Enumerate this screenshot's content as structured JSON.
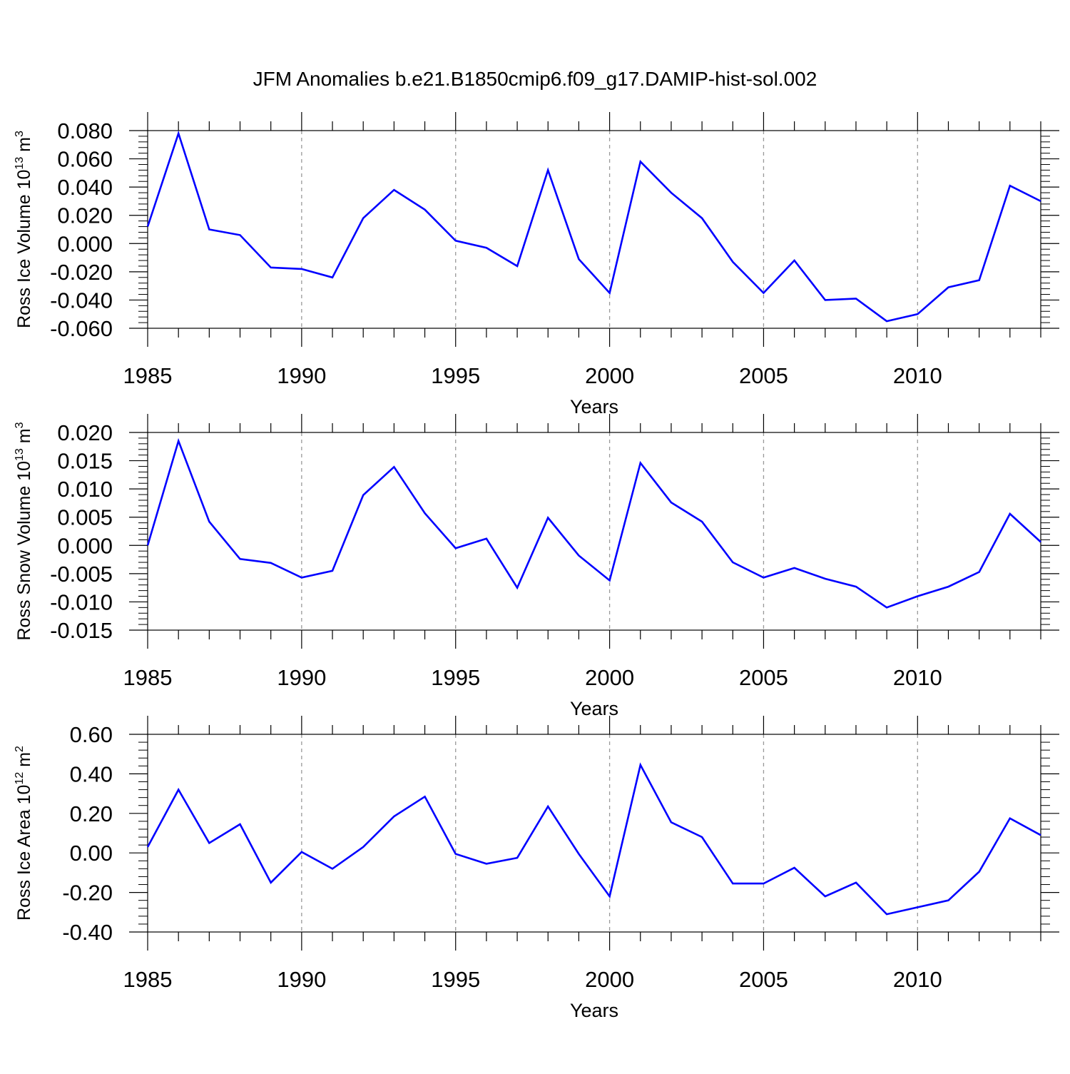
{
  "title": "JFM Anomalies b.e21.B1850cmip6.f09_g17.DAMIP-hist-sol.002",
  "styles": {
    "line_color": "#0000ff",
    "grid_color": "#999999",
    "axis_color": "#000000"
  },
  "chart_data": [
    {
      "type": "line",
      "ylabel": {
        "text": "Ross Ice Volume 10",
        "sup": "13",
        "unit": " m",
        "unit_sup": "3"
      },
      "xlabel": "Years",
      "xlim": [
        1985,
        2014
      ],
      "ylim": [
        -0.06,
        0.08
      ],
      "y_ticks": [
        -0.06,
        -0.04,
        -0.02,
        0.0,
        0.02,
        0.04,
        0.06,
        0.08
      ],
      "y_tick_labels": [
        "-0.060",
        "-0.040",
        "-0.020",
        "0.000",
        "0.020",
        "0.040",
        "0.060",
        "0.080"
      ],
      "x_ticks": [
        1985,
        1990,
        1995,
        2000,
        2005,
        2010
      ],
      "x_tick_labels": [
        "1985",
        "1990",
        "1995",
        "2000",
        "2005",
        "2010"
      ],
      "grid": "dashed vertical at major x ticks",
      "series": [
        {
          "x": [
            1985,
            1986,
            1987,
            1988,
            1989,
            1990,
            1991,
            1992,
            1993,
            1994,
            1995,
            1996,
            1997,
            1998,
            1999,
            2000,
            2001,
            2002,
            2003,
            2004,
            2005,
            2006,
            2007,
            2008,
            2009,
            2010,
            2011,
            2012,
            2013,
            2014
          ],
          "values": [
            0.012,
            0.078,
            0.01,
            0.006,
            -0.017,
            -0.018,
            -0.024,
            0.018,
            0.038,
            0.024,
            0.002,
            -0.003,
            -0.016,
            0.052,
            -0.011,
            -0.035,
            0.058,
            0.036,
            0.018,
            -0.013,
            -0.035,
            -0.012,
            -0.04,
            -0.039,
            -0.055,
            -0.05,
            -0.031,
            -0.026,
            0.041,
            0.03
          ]
        }
      ]
    },
    {
      "type": "line",
      "ylabel": {
        "text": "Ross Snow Volume 10",
        "sup": "13",
        "unit": " m",
        "unit_sup": "3"
      },
      "xlabel": "Years",
      "xlim": [
        1985,
        2014
      ],
      "ylim": [
        -0.015,
        0.02
      ],
      "y_ticks": [
        -0.015,
        -0.01,
        -0.005,
        0.0,
        0.005,
        0.01,
        0.015,
        0.02
      ],
      "y_tick_labels": [
        "-0.015",
        "-0.010",
        "-0.005",
        "0.000",
        "0.005",
        "0.010",
        "0.015",
        "0.020"
      ],
      "x_ticks": [
        1985,
        1990,
        1995,
        2000,
        2005,
        2010
      ],
      "x_tick_labels": [
        "1985",
        "1990",
        "1995",
        "2000",
        "2005",
        "2010"
      ],
      "grid": "dashed vertical at major x ticks",
      "series": [
        {
          "x": [
            1985,
            1986,
            1987,
            1988,
            1989,
            1990,
            1991,
            1992,
            1993,
            1994,
            1995,
            1996,
            1997,
            1998,
            1999,
            2000,
            2001,
            2002,
            2003,
            2004,
            2005,
            2006,
            2007,
            2008,
            2009,
            2010,
            2011,
            2012,
            2013,
            2014
          ],
          "values": [
            0.0,
            0.0185,
            0.0042,
            -0.0024,
            -0.0031,
            -0.0057,
            -0.0045,
            0.0089,
            0.0139,
            0.0057,
            -0.0005,
            0.0012,
            -0.0075,
            0.0049,
            -0.0018,
            -0.0062,
            0.0146,
            0.0076,
            0.0042,
            -0.003,
            -0.0057,
            -0.004,
            -0.0059,
            -0.0073,
            -0.011,
            -0.009,
            -0.0073,
            -0.0047,
            0.0056,
            0.0006
          ]
        }
      ]
    },
    {
      "type": "line",
      "ylabel": {
        "text": "Ross Ice Area 10",
        "sup": "12",
        "unit": " m",
        "unit_sup": "2"
      },
      "xlabel": "Years",
      "xlim": [
        1985,
        2014
      ],
      "ylim": [
        -0.4,
        0.6
      ],
      "y_ticks": [
        -0.4,
        -0.2,
        0.0,
        0.2,
        0.4,
        0.6
      ],
      "y_tick_labels": [
        "-0.40",
        "-0.20",
        "0.00",
        "0.20",
        "0.40",
        "0.60"
      ],
      "x_ticks": [
        1985,
        1990,
        1995,
        2000,
        2005,
        2010
      ],
      "x_tick_labels": [
        "1985",
        "1990",
        "1995",
        "2000",
        "2005",
        "2010"
      ],
      "grid": "dashed vertical at major x ticks",
      "series": [
        {
          "x": [
            1985,
            1986,
            1987,
            1988,
            1989,
            1990,
            1991,
            1992,
            1993,
            1994,
            1995,
            1996,
            1997,
            1998,
            1999,
            2000,
            2001,
            2002,
            2003,
            2004,
            2005,
            2006,
            2007,
            2008,
            2009,
            2010,
            2011,
            2012,
            2013,
            2014
          ],
          "values": [
            0.03,
            0.32,
            0.05,
            0.145,
            -0.15,
            0.005,
            -0.08,
            0.03,
            0.185,
            0.285,
            -0.005,
            -0.055,
            -0.025,
            0.235,
            -0.005,
            -0.22,
            0.445,
            0.155,
            0.08,
            -0.155,
            -0.155,
            -0.075,
            -0.22,
            -0.15,
            -0.31,
            -0.275,
            -0.24,
            -0.095,
            0.175,
            0.09
          ]
        }
      ]
    }
  ]
}
